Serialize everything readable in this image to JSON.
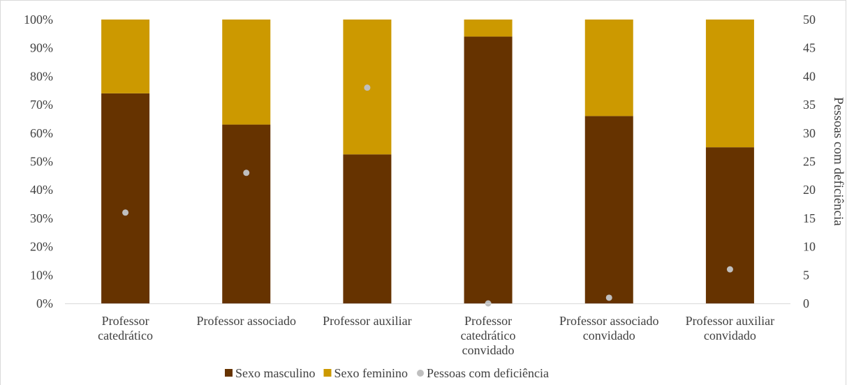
{
  "chart_data": {
    "type": "bar",
    "stacked": true,
    "categories": [
      [
        "Professor",
        "catedrático"
      ],
      [
        "Professor associado"
      ],
      [
        "Professor auxiliar"
      ],
      [
        "Professor",
        "catedrático",
        "convidado"
      ],
      [
        "Professor associado",
        "convidado"
      ],
      [
        "Professor auxiliar",
        "convidado"
      ]
    ],
    "series": [
      {
        "name": "Sexo masculino",
        "axis": "left",
        "color": "#663300",
        "values": [
          74,
          63,
          52.5,
          94,
          66,
          55
        ]
      },
      {
        "name": "Sexo feminino",
        "axis": "left",
        "color": "#CC9900",
        "values": [
          26,
          37,
          47.5,
          6,
          34,
          45
        ]
      },
      {
        "name": "Pessoas com deficiência",
        "axis": "right",
        "type": "scatter",
        "color": "#BFBFBF",
        "values": [
          16,
          23,
          38,
          0,
          1,
          6
        ]
      }
    ],
    "y_left": {
      "min": 0,
      "max": 100,
      "step": 10,
      "ticks": [
        "0%",
        "10%",
        "20%",
        "30%",
        "40%",
        "50%",
        "60%",
        "70%",
        "80%",
        "90%",
        "100%"
      ]
    },
    "y_right": {
      "min": 0,
      "max": 50,
      "step": 5,
      "label": "Pessoas com deficiência",
      "ticks": [
        "0",
        "5",
        "10",
        "15",
        "20",
        "25",
        "30",
        "35",
        "40",
        "45",
        "50"
      ]
    },
    "grid": false,
    "legend_position": "bottom",
    "colors": {
      "axis_line": "#D9D9D9",
      "text": "#404040",
      "border": "#D9D9D9"
    }
  }
}
